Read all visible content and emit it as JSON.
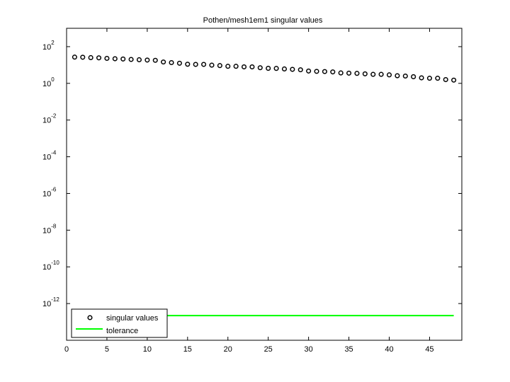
{
  "chart_data": {
    "type": "scatter",
    "title": "Pothen/mesh1em1 singular values",
    "xlabel": "",
    "ylabel": "",
    "xlim": [
      0,
      49
    ],
    "ylim_log10": [
      -14,
      3
    ],
    "y_scale": "log",
    "x_ticks": [
      "0",
      "5",
      "10",
      "15",
      "20",
      "25",
      "30",
      "35",
      "40",
      "45"
    ],
    "y_ticks": [
      {
        "base": "10",
        "exp": "2"
      },
      {
        "base": "10",
        "exp": "0"
      },
      {
        "base": "10",
        "exp": "-2"
      },
      {
        "base": "10",
        "exp": "-4"
      },
      {
        "base": "10",
        "exp": "-6"
      },
      {
        "base": "10",
        "exp": "-8"
      },
      {
        "base": "10",
        "exp": "-10"
      },
      {
        "base": "10",
        "exp": "-12"
      }
    ],
    "grid": false,
    "legend_position": "bottom-left",
    "series": [
      {
        "name": "singular values",
        "marker": "circle",
        "color": "#000000",
        "x": [
          1,
          2,
          3,
          4,
          5,
          6,
          7,
          8,
          9,
          10,
          11,
          12,
          13,
          14,
          15,
          16,
          17,
          18,
          19,
          20,
          21,
          22,
          23,
          24,
          25,
          26,
          27,
          28,
          29,
          30,
          31,
          32,
          33,
          34,
          35,
          36,
          37,
          38,
          39,
          40,
          41,
          42,
          43,
          44,
          45,
          46,
          47,
          48
        ],
        "y": [
          26.9,
          26.5,
          25.2,
          24.5,
          23.0,
          21.9,
          21.2,
          20.1,
          19.3,
          18.6,
          18.0,
          14.6,
          13.5,
          12.5,
          11.0,
          10.8,
          10.8,
          9.8,
          9.3,
          8.5,
          8.5,
          7.9,
          7.9,
          7.1,
          6.6,
          6.5,
          6.1,
          5.8,
          5.5,
          4.7,
          4.5,
          4.4,
          4.2,
          3.7,
          3.6,
          3.5,
          3.3,
          3.1,
          3.1,
          2.9,
          2.6,
          2.5,
          2.3,
          2.0,
          1.9,
          1.9,
          1.6,
          1.5
        ]
      },
      {
        "name": "tolerance",
        "marker": "line",
        "color": "#00ff00",
        "x": [
          1,
          48
        ],
        "y": [
          2.2e-13,
          2.2e-13
        ]
      }
    ]
  }
}
